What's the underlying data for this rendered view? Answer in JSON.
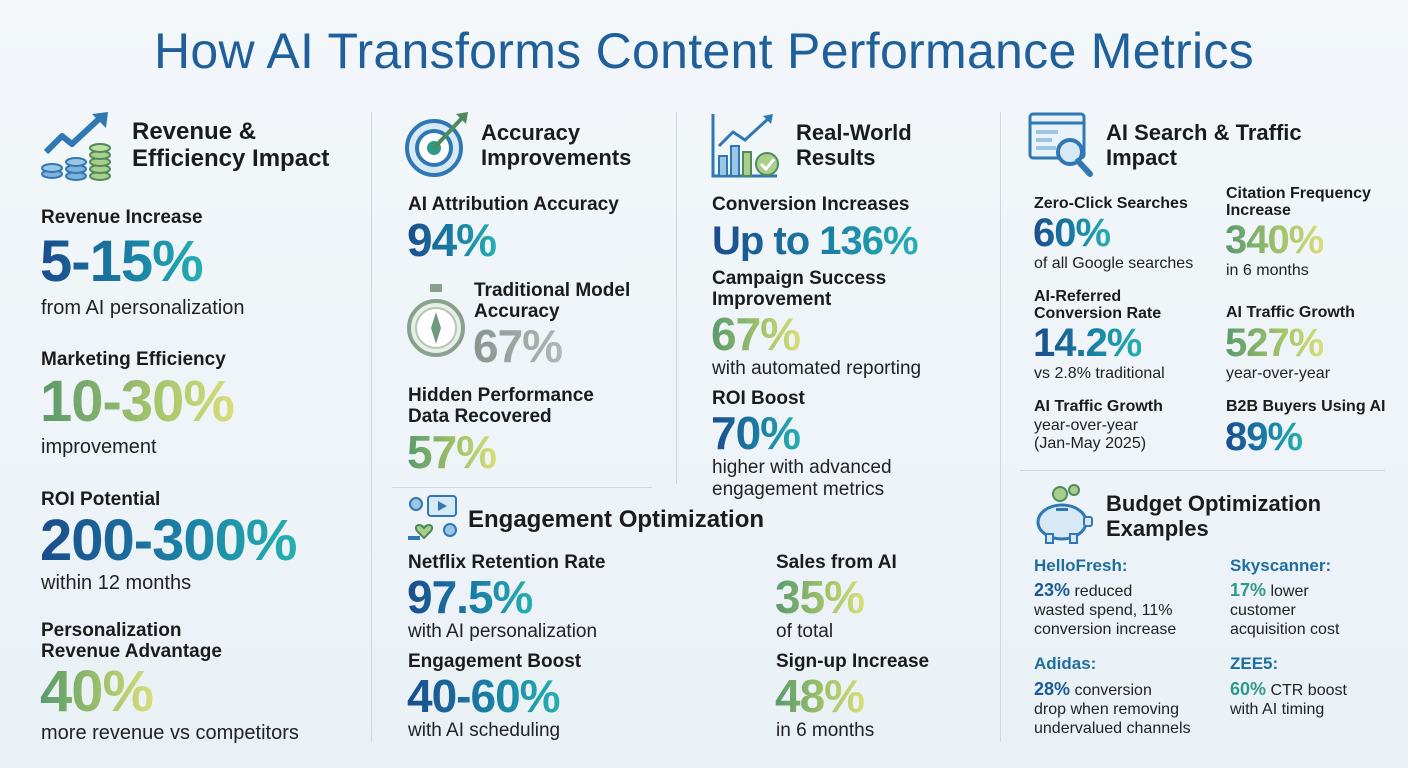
{
  "title": "How AI Transforms Content Performance Metrics",
  "colors": {
    "title": "#1f5f9a",
    "blue_gradient": [
      "#1a4c8c",
      "#26b0b0"
    ],
    "green_gradient": [
      "#5a9a6c",
      "#d8de7a"
    ],
    "gray": "#8a948f"
  },
  "revenue": {
    "icon": "coins-growth-icon",
    "heading_line1": "Revenue &",
    "heading_line2": "Efficiency Impact",
    "stats": [
      {
        "label": "Revenue Increase",
        "value": "5-15%",
        "note": "from AI personalization"
      },
      {
        "label": "Marketing Efficiency",
        "value": "10-30%",
        "note": "improvement"
      },
      {
        "label": "ROI Potential",
        "value": "200-300%",
        "note": "within 12 months"
      },
      {
        "label_line1": "Personalization",
        "label_line2": "Revenue Advantage",
        "value": "40%",
        "note": "more revenue vs competitors"
      }
    ]
  },
  "accuracy": {
    "icon": "target-icon",
    "heading_line1": "Accuracy",
    "heading_line2": "Improvements",
    "stats": [
      {
        "label": "AI Attribution Accuracy",
        "value": "94%"
      },
      {
        "icon": "stopwatch-icon",
        "label_line1": "Traditional Model",
        "label_line2": "Accuracy",
        "value": "67%"
      },
      {
        "label_line1": "Hidden Performance",
        "label_line2": "Data Recovered",
        "value": "57%"
      }
    ]
  },
  "results": {
    "icon": "bar-chart-check-icon",
    "heading_line1": "Real-World",
    "heading_line2": "Results",
    "stats": [
      {
        "label": "Conversion Increases",
        "value": "Up to 136%"
      },
      {
        "label_line1": "Campaign Success",
        "label_line2": "Improvement",
        "value": "67%",
        "note": "with automated reporting"
      },
      {
        "label": "ROI Boost",
        "value": "70%",
        "note_line1": "higher with advanced",
        "note_line2": "engagement metrics"
      }
    ]
  },
  "engagement": {
    "icon": "social-engagement-icon",
    "heading": "Engagement Optimization",
    "stats": [
      {
        "label": "Netflix Retention Rate",
        "value": "97.5%",
        "note": "with AI personalization"
      },
      {
        "label": "Engagement Boost",
        "value": "40-60%",
        "note": "with AI scheduling"
      },
      {
        "label": "Sales from AI",
        "value": "35%",
        "note": "of total"
      },
      {
        "label": "Sign-up Increase",
        "value": "48%",
        "note": "in 6 months"
      }
    ]
  },
  "search": {
    "icon": "browser-search-icon",
    "heading_line1": "AI Search & Traffic",
    "heading_line2": "Impact",
    "stats": [
      {
        "label": "Zero-Click Searches",
        "value": "60%",
        "note": "of all Google searches"
      },
      {
        "label_line1": "Citation Frequency",
        "label_line2": "Increase",
        "value": "340%",
        "note": "in 6 months"
      },
      {
        "label_line1": "AI-Referred",
        "label_line2": "Conversion Rate",
        "value": "14.2%",
        "note": "vs 2.8% traditional"
      },
      {
        "label": "AI Traffic Growth",
        "value": "527%",
        "note": "year-over-year"
      },
      {
        "label": "AI Traffic Growth",
        "note_line1": "year-over-year",
        "note_line2": "(Jan-May 2025)"
      },
      {
        "label": "B2B Buyers Using AI",
        "value": "89%"
      }
    ]
  },
  "budget": {
    "icon": "piggy-bank-gears-icon",
    "heading_line1": "Budget Optimization",
    "heading_line2": "Examples",
    "examples": [
      {
        "company": "HelloFresh:",
        "highlight": "23%",
        "line1": " reduced",
        "line2": "wasted spend, 11%",
        "line3": "conversion increase"
      },
      {
        "company": "Skyscanner:",
        "highlight": "17%",
        "line1": " lower",
        "line2": "customer",
        "line3": "acquisition cost"
      },
      {
        "company": "Adidas:",
        "highlight": "28%",
        "line1": " conversion",
        "line2": "drop when removing",
        "line3": "undervalued channels"
      },
      {
        "company": "ZEE5:",
        "highlight": "60%",
        "line1": " CTR boost",
        "line2": "with AI timing"
      }
    ]
  }
}
